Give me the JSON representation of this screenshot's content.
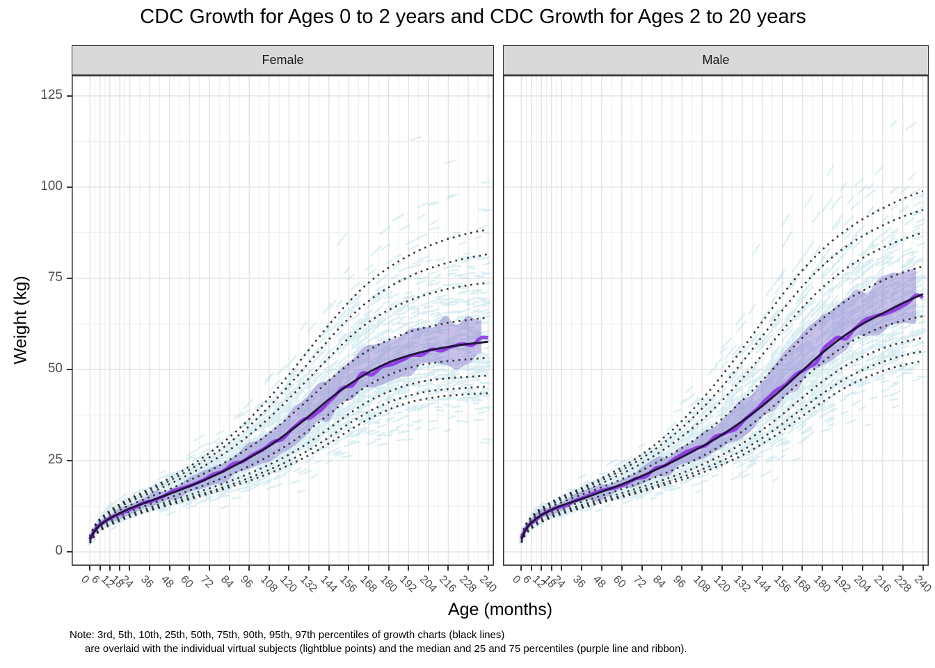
{
  "title": "CDC Growth for Ages 0 to 2 years and CDC Growth for Ages 2 to 20 years",
  "facets": [
    {
      "label": "Female"
    },
    {
      "label": "Male"
    }
  ],
  "x_axis": {
    "label": "Age (months)",
    "ticks": [
      0,
      6,
      12,
      18,
      24,
      36,
      48,
      60,
      72,
      84,
      96,
      108,
      120,
      132,
      144,
      156,
      168,
      180,
      192,
      204,
      216,
      228,
      240
    ],
    "tick_labels": [
      "0",
      "6",
      "12",
      "18",
      "24",
      "36",
      "48",
      "60",
      "72",
      "84",
      "96",
      "108",
      "120",
      "132",
      "144",
      "156",
      "168",
      "180",
      "192",
      "204",
      "216",
      "228",
      "240"
    ],
    "minor_breaks": [
      3,
      9,
      15,
      21,
      30,
      42,
      54,
      66,
      78,
      90,
      102,
      114,
      126,
      138,
      150,
      162,
      174,
      186,
      198,
      210,
      222,
      234
    ],
    "domain": [
      -11,
      243.5
    ]
  },
  "y_axis": {
    "label": "Weight (kg)",
    "ticks": [
      0,
      25,
      50,
      75,
      100,
      125
    ],
    "minor_breaks": [
      12.5,
      37.5,
      62.5,
      87.5,
      112.5
    ],
    "domain": [
      -3.8,
      130.7
    ]
  },
  "note": {
    "line1": "Note: 3rd, 5th, 10th, 25th, 50th, 75th, 90th, 95th, 97th percentiles of growth charts (black lines)",
    "line2": "are overlaid with the individual virtual subjects (lightblue points) and the median and 25 and 75 percentiles (purple line and ribbon)."
  },
  "percentile_labels": [
    "3rd",
    "5th",
    "10th",
    "25th",
    "50th",
    "75th",
    "90th",
    "95th",
    "97th"
  ],
  "subject_cloud": {
    "points_per_facet": 2800,
    "description": "individual virtual subjects (lightblue points)"
  },
  "colors": {
    "cloud": "#a6d7e4",
    "ribbon": "#7b68c8",
    "median_line": "#8a2be2",
    "cdc_line": "#1c1133",
    "percentile_dots": "#2b2b2b",
    "grid_major": "#e3e3e3",
    "grid_minor": "#efefef",
    "strip_bg": "#d9d9d9",
    "panel_border": "#333333",
    "axis_text": "#4d4d4d"
  },
  "chart_data": [
    {
      "type": "line",
      "facet": "Female",
      "facet_key": "female",
      "xlabel": "Age (months)",
      "ylabel": "Weight (kg)",
      "xlim": [
        0,
        240
      ],
      "ylim": [
        0,
        130
      ],
      "ages": [
        0,
        2,
        4,
        6,
        9,
        12,
        18,
        24,
        36,
        48,
        60,
        72,
        84,
        96,
        108,
        120,
        132,
        144,
        156,
        168,
        180,
        192,
        204,
        216,
        228,
        240
      ],
      "percentiles": {
        "p3": [
          2.4,
          3.8,
          4.9,
          5.7,
          6.6,
          7.3,
          8.5,
          9.6,
          11.3,
          12.9,
          14.4,
          16.0,
          17.7,
          19.5,
          21.5,
          23.8,
          26.5,
          29.7,
          33.2,
          36.4,
          39.0,
          40.9,
          42.1,
          42.8,
          43.2,
          43.5
        ],
        "p5": [
          2.5,
          4.0,
          5.1,
          5.9,
          6.8,
          7.6,
          8.8,
          9.9,
          11.6,
          13.3,
          14.9,
          16.5,
          18.3,
          20.3,
          22.5,
          25.0,
          27.9,
          31.4,
          35.1,
          38.4,
          41.0,
          42.8,
          44.0,
          44.6,
          45.0,
          45.3
        ],
        "p10": [
          2.7,
          4.3,
          5.4,
          6.2,
          7.1,
          7.9,
          9.2,
          10.3,
          12.1,
          13.9,
          15.6,
          17.4,
          19.3,
          21.5,
          23.9,
          26.7,
          30.0,
          33.8,
          37.8,
          41.3,
          43.9,
          45.8,
          47.0,
          47.6,
          48.0,
          48.3
        ],
        "p25": [
          3.0,
          4.7,
          5.9,
          6.7,
          7.7,
          8.5,
          9.9,
          11.1,
          13.0,
          14.9,
          16.8,
          18.8,
          21.0,
          23.5,
          26.3,
          29.6,
          33.4,
          37.7,
          42.0,
          45.7,
          48.5,
          50.4,
          51.6,
          52.3,
          52.8,
          53.2
        ],
        "p50": [
          3.4,
          5.1,
          6.4,
          7.3,
          8.3,
          9.2,
          10.6,
          11.9,
          13.9,
          15.9,
          18.0,
          20.3,
          22.9,
          25.8,
          29.0,
          32.9,
          37.2,
          41.8,
          45.8,
          49.2,
          51.9,
          53.8,
          55.2,
          56.2,
          57.0,
          57.6
        ],
        "p75": [
          3.7,
          5.6,
          6.9,
          7.9,
          9.0,
          10.0,
          11.5,
          12.8,
          15.0,
          17.2,
          19.6,
          22.2,
          25.2,
          28.6,
          32.5,
          37.0,
          41.9,
          46.9,
          51.5,
          55.3,
          58.1,
          60.2,
          61.7,
          62.8,
          63.6,
          64.2
        ],
        "p90": [
          4.0,
          6.0,
          7.4,
          8.4,
          9.6,
          10.6,
          12.2,
          13.7,
          16.1,
          18.6,
          21.3,
          24.4,
          27.9,
          32.0,
          36.7,
          42.0,
          47.6,
          53.2,
          58.6,
          63.0,
          66.3,
          68.8,
          70.7,
          72.1,
          73.1,
          73.8
        ],
        "p95": [
          4.2,
          6.3,
          7.7,
          8.7,
          10.0,
          11.0,
          12.7,
          14.2,
          16.8,
          19.5,
          22.5,
          25.9,
          29.9,
          34.5,
          39.8,
          45.7,
          51.9,
          58.2,
          64.0,
          68.8,
          72.5,
          75.4,
          77.6,
          79.3,
          80.6,
          81.6
        ],
        "p97": [
          4.3,
          6.5,
          7.9,
          9.0,
          10.2,
          11.3,
          13.1,
          14.6,
          17.3,
          20.2,
          23.4,
          27.1,
          31.4,
          36.4,
          42.2,
          48.6,
          55.4,
          62.2,
          68.5,
          73.8,
          77.9,
          81.2,
          83.8,
          85.8,
          87.3,
          88.4
        ]
      },
      "subject_median_source": "p50",
      "subject_ribbon": [
        "p25",
        "p75"
      ]
    },
    {
      "type": "line",
      "facet": "Male",
      "facet_key": "male",
      "xlabel": "Age (months)",
      "ylabel": "Weight (kg)",
      "xlim": [
        0,
        240
      ],
      "ylim": [
        0,
        130
      ],
      "ages": [
        0,
        2,
        4,
        6,
        9,
        12,
        18,
        24,
        36,
        48,
        60,
        72,
        84,
        96,
        108,
        120,
        132,
        144,
        156,
        168,
        180,
        192,
        204,
        216,
        228,
        240
      ],
      "percentiles": {
        "p3": [
          2.5,
          4.3,
          5.6,
          6.4,
          7.4,
          8.2,
          9.4,
          10.4,
          12.0,
          13.5,
          15.0,
          16.5,
          18.1,
          19.8,
          21.7,
          23.9,
          26.5,
          29.6,
          33.2,
          37.2,
          41.1,
          44.6,
          47.4,
          49.6,
          51.2,
          52.4
        ],
        "p5": [
          2.6,
          4.5,
          5.8,
          6.6,
          7.7,
          8.4,
          9.7,
          10.7,
          12.4,
          13.9,
          15.4,
          17.0,
          18.7,
          20.5,
          22.6,
          25.0,
          27.8,
          31.2,
          35.1,
          39.3,
          43.4,
          47.0,
          49.9,
          52.1,
          53.8,
          55.0
        ],
        "p10": [
          2.8,
          4.8,
          6.1,
          6.9,
          8.0,
          8.8,
          10.1,
          11.2,
          12.9,
          14.5,
          16.1,
          17.8,
          19.6,
          21.6,
          23.9,
          26.6,
          29.7,
          33.4,
          37.7,
          42.3,
          46.7,
          50.5,
          53.5,
          55.8,
          57.5,
          58.7
        ],
        "p25": [
          3.1,
          5.2,
          6.5,
          7.4,
          8.5,
          9.4,
          10.8,
          11.9,
          13.7,
          15.4,
          17.2,
          19.1,
          21.2,
          23.5,
          26.2,
          29.3,
          33.0,
          37.3,
          42.1,
          47.2,
          52.0,
          56.1,
          59.3,
          61.7,
          63.4,
          64.6
        ],
        "p50": [
          3.5,
          5.6,
          7.0,
          8.0,
          9.2,
          10.1,
          11.5,
          12.7,
          14.5,
          16.5,
          18.5,
          20.8,
          23.3,
          26.0,
          28.9,
          32.1,
          35.8,
          40.0,
          44.7,
          49.7,
          54.6,
          58.9,
          62.5,
          65.4,
          68.2,
          70.7
        ],
        "p75": [
          3.8,
          6.1,
          7.6,
          8.6,
          9.9,
          10.9,
          12.4,
          13.6,
          15.7,
          17.7,
          19.9,
          22.4,
          25.3,
          28.5,
          32.2,
          36.5,
          41.5,
          47.0,
          52.9,
          58.7,
          63.9,
          68.2,
          71.6,
          74.4,
          76.6,
          78.3
        ],
        "p90": [
          4.2,
          6.5,
          8.0,
          9.1,
          10.4,
          11.4,
          13.0,
          14.3,
          16.5,
          18.8,
          21.4,
          24.3,
          27.7,
          31.6,
          36.2,
          41.5,
          47.5,
          54.0,
          60.7,
          67.0,
          72.5,
          77.0,
          80.6,
          83.4,
          85.7,
          87.5
        ],
        "p95": [
          4.4,
          6.8,
          8.3,
          9.4,
          10.8,
          11.8,
          13.4,
          14.8,
          17.1,
          19.6,
          22.4,
          25.7,
          29.5,
          34.0,
          39.3,
          45.3,
          52.0,
          59.1,
          66.2,
          72.8,
          78.4,
          83.0,
          86.6,
          89.5,
          91.9,
          93.8
        ],
        "p97": [
          4.5,
          6.9,
          8.5,
          9.6,
          11.0,
          12.0,
          13.7,
          15.1,
          17.5,
          20.2,
          23.2,
          26.7,
          30.9,
          35.9,
          41.8,
          48.4,
          55.6,
          63.1,
          70.5,
          77.2,
          82.9,
          87.5,
          91.2,
          94.2,
          96.8,
          98.9
        ]
      },
      "subject_median_source": "p50",
      "subject_ribbon": [
        "p25",
        "p75"
      ]
    }
  ]
}
